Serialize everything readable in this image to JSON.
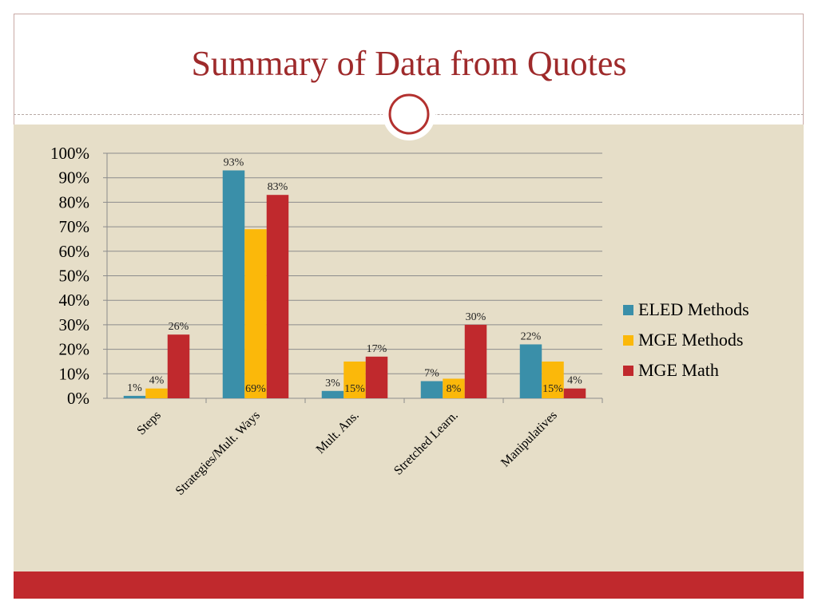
{
  "slide": {
    "title": "Summary of Data from Quotes"
  },
  "colors": {
    "title": "#9e2a2b",
    "content_background": "#e6dec8",
    "footer_bar": "#c0292d",
    "ornament_ring": "#b3312f"
  },
  "chart_data": {
    "type": "bar",
    "categories": [
      "Steps",
      "Strategies/Mult. Ways",
      "Mult. Ans.",
      "Stretched Learn.",
      "Manipulatives"
    ],
    "series": [
      {
        "name": "ELED Methods",
        "color": "#3a8fa9",
        "values": [
          1,
          93,
          3,
          7,
          22
        ],
        "labels": [
          "1%",
          "93%",
          "3%",
          "7%",
          "22%"
        ]
      },
      {
        "name": "MGE Methods",
        "color": "#fbb80a",
        "values": [
          4,
          69,
          15,
          8,
          15
        ],
        "labels": [
          "4%",
          "69%",
          "15%",
          "8%",
          "15%"
        ]
      },
      {
        "name": "MGE Math",
        "color": "#c0292d",
        "values": [
          26,
          83,
          17,
          30,
          4
        ],
        "labels": [
          "26%",
          "83%",
          "17%",
          "30%",
          "4%"
        ]
      }
    ],
    "y_ticks": [
      "0%",
      "10%",
      "20%",
      "30%",
      "40%",
      "50%",
      "60%",
      "70%",
      "80%",
      "90%",
      "100%"
    ],
    "ylim": [
      0,
      100
    ],
    "grid": true,
    "legend_position": "right"
  }
}
